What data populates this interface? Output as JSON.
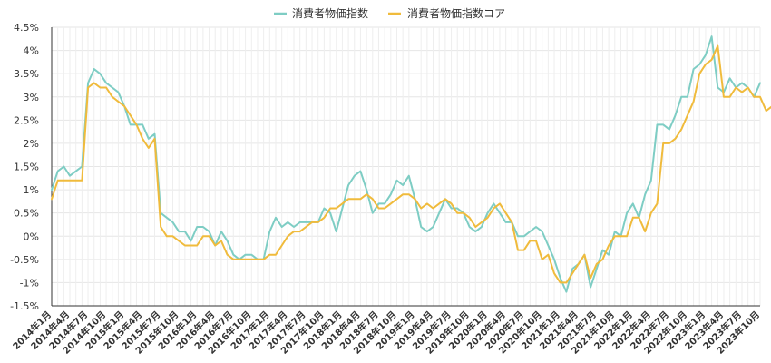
{
  "chart_data": {
    "type": "line",
    "ylim": [
      -1.5,
      4.5
    ],
    "y_ticks": [
      "4.5%",
      "4%",
      "3.5%",
      "3%",
      "2.5%",
      "2%",
      "1.5%",
      "1%",
      "0.5%",
      "0%",
      "-0.5%",
      "-1%",
      "-1.5%"
    ],
    "y_tick_values": [
      4.5,
      4,
      3.5,
      3,
      2.5,
      2,
      1.5,
      1,
      0.5,
      0,
      -0.5,
      -1,
      -1.5
    ],
    "x_ticks": [
      "2014年1月",
      "2014年4月",
      "2014年7月",
      "2014年10月",
      "2015年1月",
      "2015年4月",
      "2015年7月",
      "2015年10月",
      "2016年1月",
      "2016年4月",
      "2016年7月",
      "2016年10月",
      "2017年1月",
      "2017年4月",
      "2017年7月",
      "2017年10月",
      "2018年1月",
      "2018年4月",
      "2018年7月",
      "2018年10月",
      "2019年1月",
      "2019年4月",
      "2019年7月",
      "2019年10月",
      "2020年1月",
      "2020年4月",
      "2020年7月",
      "2020年10月",
      "2021年1月",
      "2021年4月",
      "2021年7月",
      "2021年10月",
      "2022年1月",
      "2022年4月",
      "2022年7月",
      "2022年10月",
      "2023年1月",
      "2023年4月",
      "2023年7月",
      "2023年10月"
    ],
    "grid": true,
    "legend_position": "top",
    "series": [
      {
        "name": "消費者物価指数",
        "color": "#7ecdc4",
        "values": [
          1.0,
          1.4,
          1.5,
          1.3,
          1.4,
          1.5,
          3.3,
          3.6,
          3.5,
          3.3,
          3.2,
          3.1,
          2.8,
          2.4,
          2.4,
          2.4,
          2.1,
          2.2,
          0.5,
          0.4,
          0.3,
          0.1,
          0.1,
          -0.1,
          0.2,
          0.2,
          0.1,
          -0.2,
          0.1,
          -0.1,
          -0.4,
          -0.5,
          -0.4,
          -0.4,
          -0.5,
          -0.5,
          0.1,
          0.4,
          0.2,
          0.3,
          0.2,
          0.3,
          0.3,
          0.3,
          0.3,
          0.6,
          0.5,
          0.1,
          0.6,
          1.1,
          1.3,
          1.4,
          1.0,
          0.5,
          0.7,
          0.7,
          0.9,
          1.2,
          1.1,
          1.3,
          0.8,
          0.2,
          0.1,
          0.2,
          0.5,
          0.8,
          0.6,
          0.6,
          0.5,
          0.2,
          0.1,
          0.2,
          0.5,
          0.7,
          0.5,
          0.3,
          0.3,
          0.0,
          0.0,
          0.1,
          0.2,
          0.1,
          -0.2,
          -0.5,
          -0.9,
          -1.2,
          -0.7,
          -0.6,
          -0.4,
          -1.1,
          -0.7,
          -0.3,
          -0.4,
          0.1,
          0.0,
          0.5,
          0.7,
          0.4,
          0.9,
          1.2,
          2.4,
          2.4,
          2.3,
          2.6,
          3.0,
          3.0,
          3.6,
          3.7,
          3.9,
          4.3,
          3.2,
          3.1,
          3.4,
          3.2,
          3.3,
          3.2,
          3.0,
          3.3
        ]
      },
      {
        "name": "消費者物価指数コア",
        "color": "#f0bb3c",
        "values": [
          0.8,
          1.2,
          1.2,
          1.2,
          1.2,
          1.2,
          3.2,
          3.3,
          3.2,
          3.2,
          3.0,
          2.9,
          2.8,
          2.6,
          2.4,
          2.1,
          1.9,
          2.1,
          0.2,
          0.0,
          0.0,
          -0.1,
          -0.2,
          -0.2,
          -0.2,
          0.0,
          0.0,
          -0.2,
          -0.1,
          -0.4,
          -0.5,
          -0.5,
          -0.5,
          -0.5,
          -0.5,
          -0.5,
          -0.4,
          -0.4,
          -0.2,
          0.0,
          0.1,
          0.1,
          0.2,
          0.3,
          0.3,
          0.4,
          0.6,
          0.6,
          0.7,
          0.8,
          0.8,
          0.8,
          0.9,
          0.8,
          0.6,
          0.6,
          0.7,
          0.8,
          0.9,
          0.9,
          0.8,
          0.6,
          0.7,
          0.6,
          0.7,
          0.8,
          0.7,
          0.5,
          0.5,
          0.4,
          0.2,
          0.3,
          0.4,
          0.6,
          0.7,
          0.5,
          0.3,
          -0.3,
          -0.3,
          -0.1,
          -0.1,
          -0.5,
          -0.4,
          -0.8,
          -1.0,
          -1.0,
          -0.8,
          -0.6,
          -0.4,
          -0.9,
          -0.6,
          -0.5,
          -0.2,
          0.0,
          0.0,
          0.0,
          0.4,
          0.4,
          0.1,
          0.5,
          0.7,
          2.0,
          2.0,
          2.1,
          2.3,
          2.6,
          2.9,
          3.5,
          3.7,
          3.8,
          4.1,
          3.0,
          3.0,
          3.2,
          3.1,
          3.2,
          3.0,
          3.0,
          2.7,
          2.8
        ]
      }
    ]
  }
}
